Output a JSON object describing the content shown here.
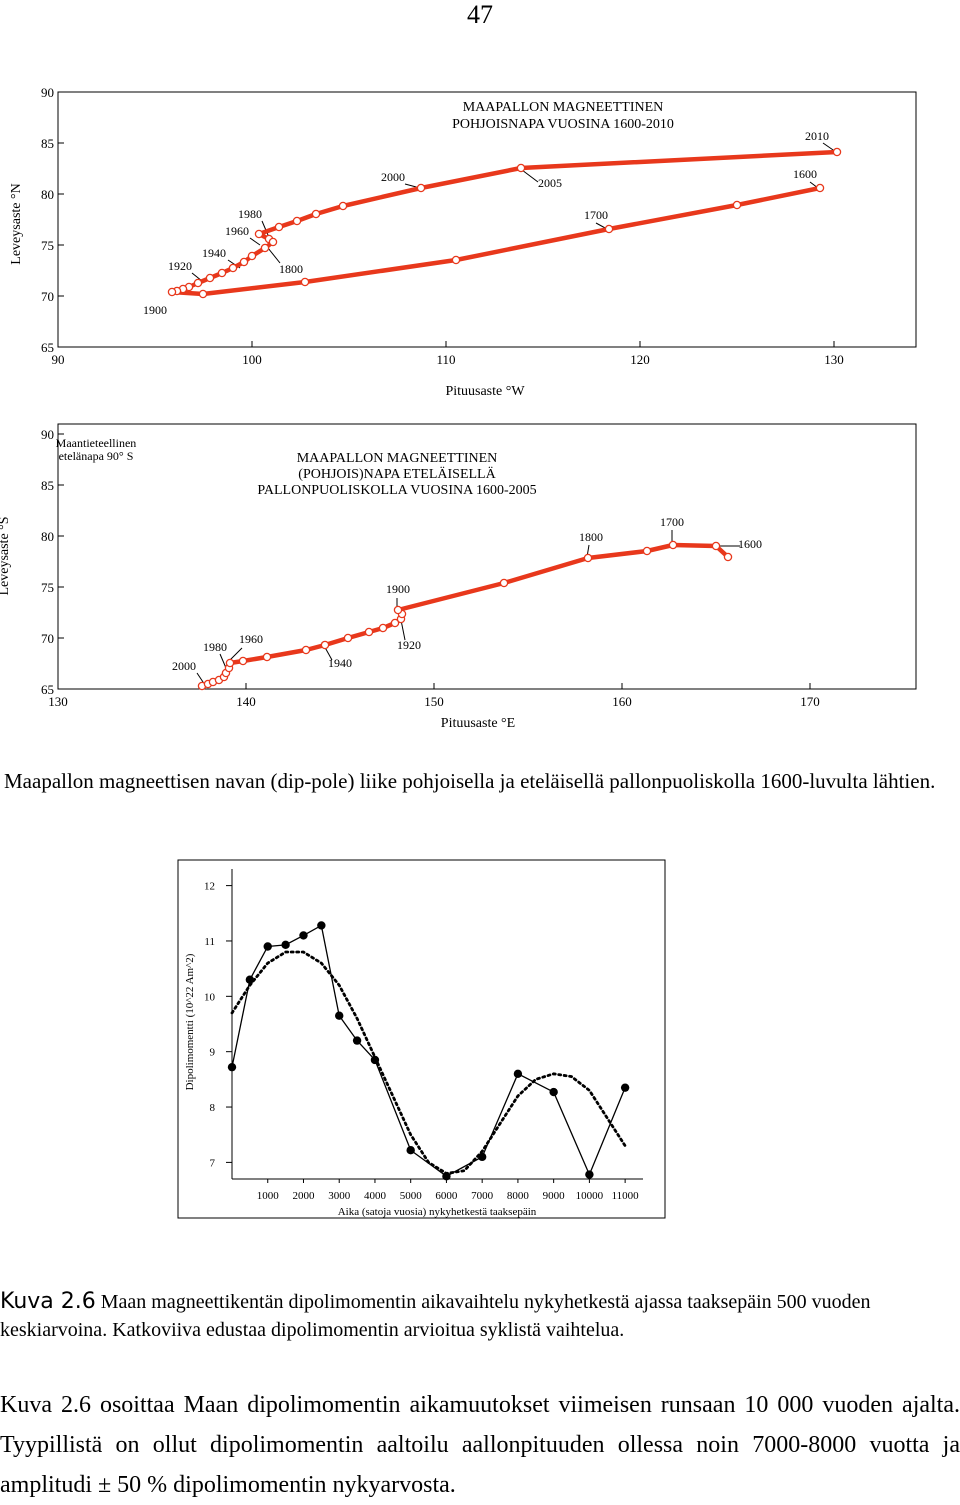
{
  "page_number": "47",
  "north_chart": {
    "title_lines": [
      "MAAPALLON MAGNEETTINEN",
      "POHJOISNAPA VUOSINA 1600-2010"
    ],
    "xlabel": "Pituusaste °W",
    "ylabel": "Leveysaste °N",
    "x_ticks": [
      "90",
      "100",
      "110",
      "120",
      "130"
    ],
    "y_ticks": [
      "65",
      "70",
      "75",
      "80",
      "85",
      "90"
    ],
    "year_labels": [
      "1900",
      "1920",
      "1940",
      "1960",
      "1980",
      "1800",
      "2000",
      "2005",
      "1700",
      "1600",
      "2010"
    ],
    "line_color": "#e8381c"
  },
  "south_chart": {
    "title_lines": [
      "MAAPALLON MAGNEETTINEN",
      "(POHJOIS)NAPA ETELÄISELLÄ",
      "PALLONPUOLISKOLLA VUOSINA 1600-2005"
    ],
    "note_lines": [
      "Maantieteellinen",
      "etelänapa 90° S"
    ],
    "xlabel": "Pituusaste °E",
    "ylabel": "Leveysaste °S",
    "x_ticks": [
      "130",
      "140",
      "150",
      "160",
      "170"
    ],
    "y_ticks": [
      "65",
      "70",
      "75",
      "80",
      "85",
      "90"
    ],
    "year_labels": [
      "2000",
      "1980",
      "1960",
      "1940",
      "1920",
      "1900",
      "1800",
      "1700",
      "1600"
    ],
    "line_color": "#e8381c"
  },
  "caption1": "Maapallon magneettisen navan (dip-pole) liike pohjoisella ja eteläisellä pallonpuoliskolla 1600-luvulta lähtien.",
  "chart_data": {
    "type": "line",
    "xlabel": "Aika (satoja vuosia) nykyhetkestä taaksepäin",
    "ylabel": "Dipolimomentti (10^22 Am^2)",
    "x_ticks": [
      "1000",
      "2000",
      "3000",
      "4000",
      "5000",
      "6000",
      "7000",
      "8000",
      "9000",
      "10000",
      "11000"
    ],
    "y_ticks": [
      "7",
      "8",
      "9",
      "10",
      "11",
      "12"
    ],
    "xlim": [
      0,
      11500
    ],
    "ylim": [
      6.7,
      12.3
    ],
    "series": [
      {
        "style": "solid-with-markers",
        "x": [
          0,
          500,
          1000,
          1500,
          2000,
          2500,
          3000,
          3500,
          4000,
          5000,
          6000,
          7000,
          8000,
          9000,
          10000,
          11000
        ],
        "y": [
          8.72,
          10.3,
          10.9,
          10.93,
          11.1,
          11.28,
          9.65,
          9.2,
          8.85,
          7.22,
          6.75,
          7.1,
          8.6,
          8.27,
          6.78,
          8.35
        ]
      },
      {
        "style": "dotted",
        "x": [
          0,
          500,
          1000,
          1500,
          2000,
          2500,
          3000,
          3500,
          4000,
          4500,
          5000,
          5500,
          6000,
          6500,
          7000,
          7500,
          8000,
          8500,
          9000,
          9500,
          10000,
          10500,
          11000
        ],
        "y": [
          9.7,
          10.2,
          10.6,
          10.8,
          10.8,
          10.6,
          10.2,
          9.6,
          8.9,
          8.2,
          7.5,
          7.0,
          6.8,
          6.85,
          7.2,
          7.7,
          8.2,
          8.5,
          8.6,
          8.55,
          8.3,
          7.8,
          7.3
        ]
      }
    ]
  },
  "caption2": {
    "label": "Kuva 2.6",
    "text": " Maan magneettikentän dipolimomentin aikavaihtelu nykyhetkestä ajassa taaksepäin 500 vuoden keskiarvoina. Katkoviiva edustaa dipolimomentin arvioitua syklistä vaihtelua."
  },
  "body_paragraph": "Kuva 2.6 osoittaa Maan dipolimomentin aikamuutokset viimeisen runsaan 10 000 vuoden ajalta. Tyypillistä on ollut dipolimomentin aaltoilu aallonpituuden ollessa noin 7000-8000 vuotta ja amplitudi ± 50 % dipolimomentin nykyarvosta."
}
